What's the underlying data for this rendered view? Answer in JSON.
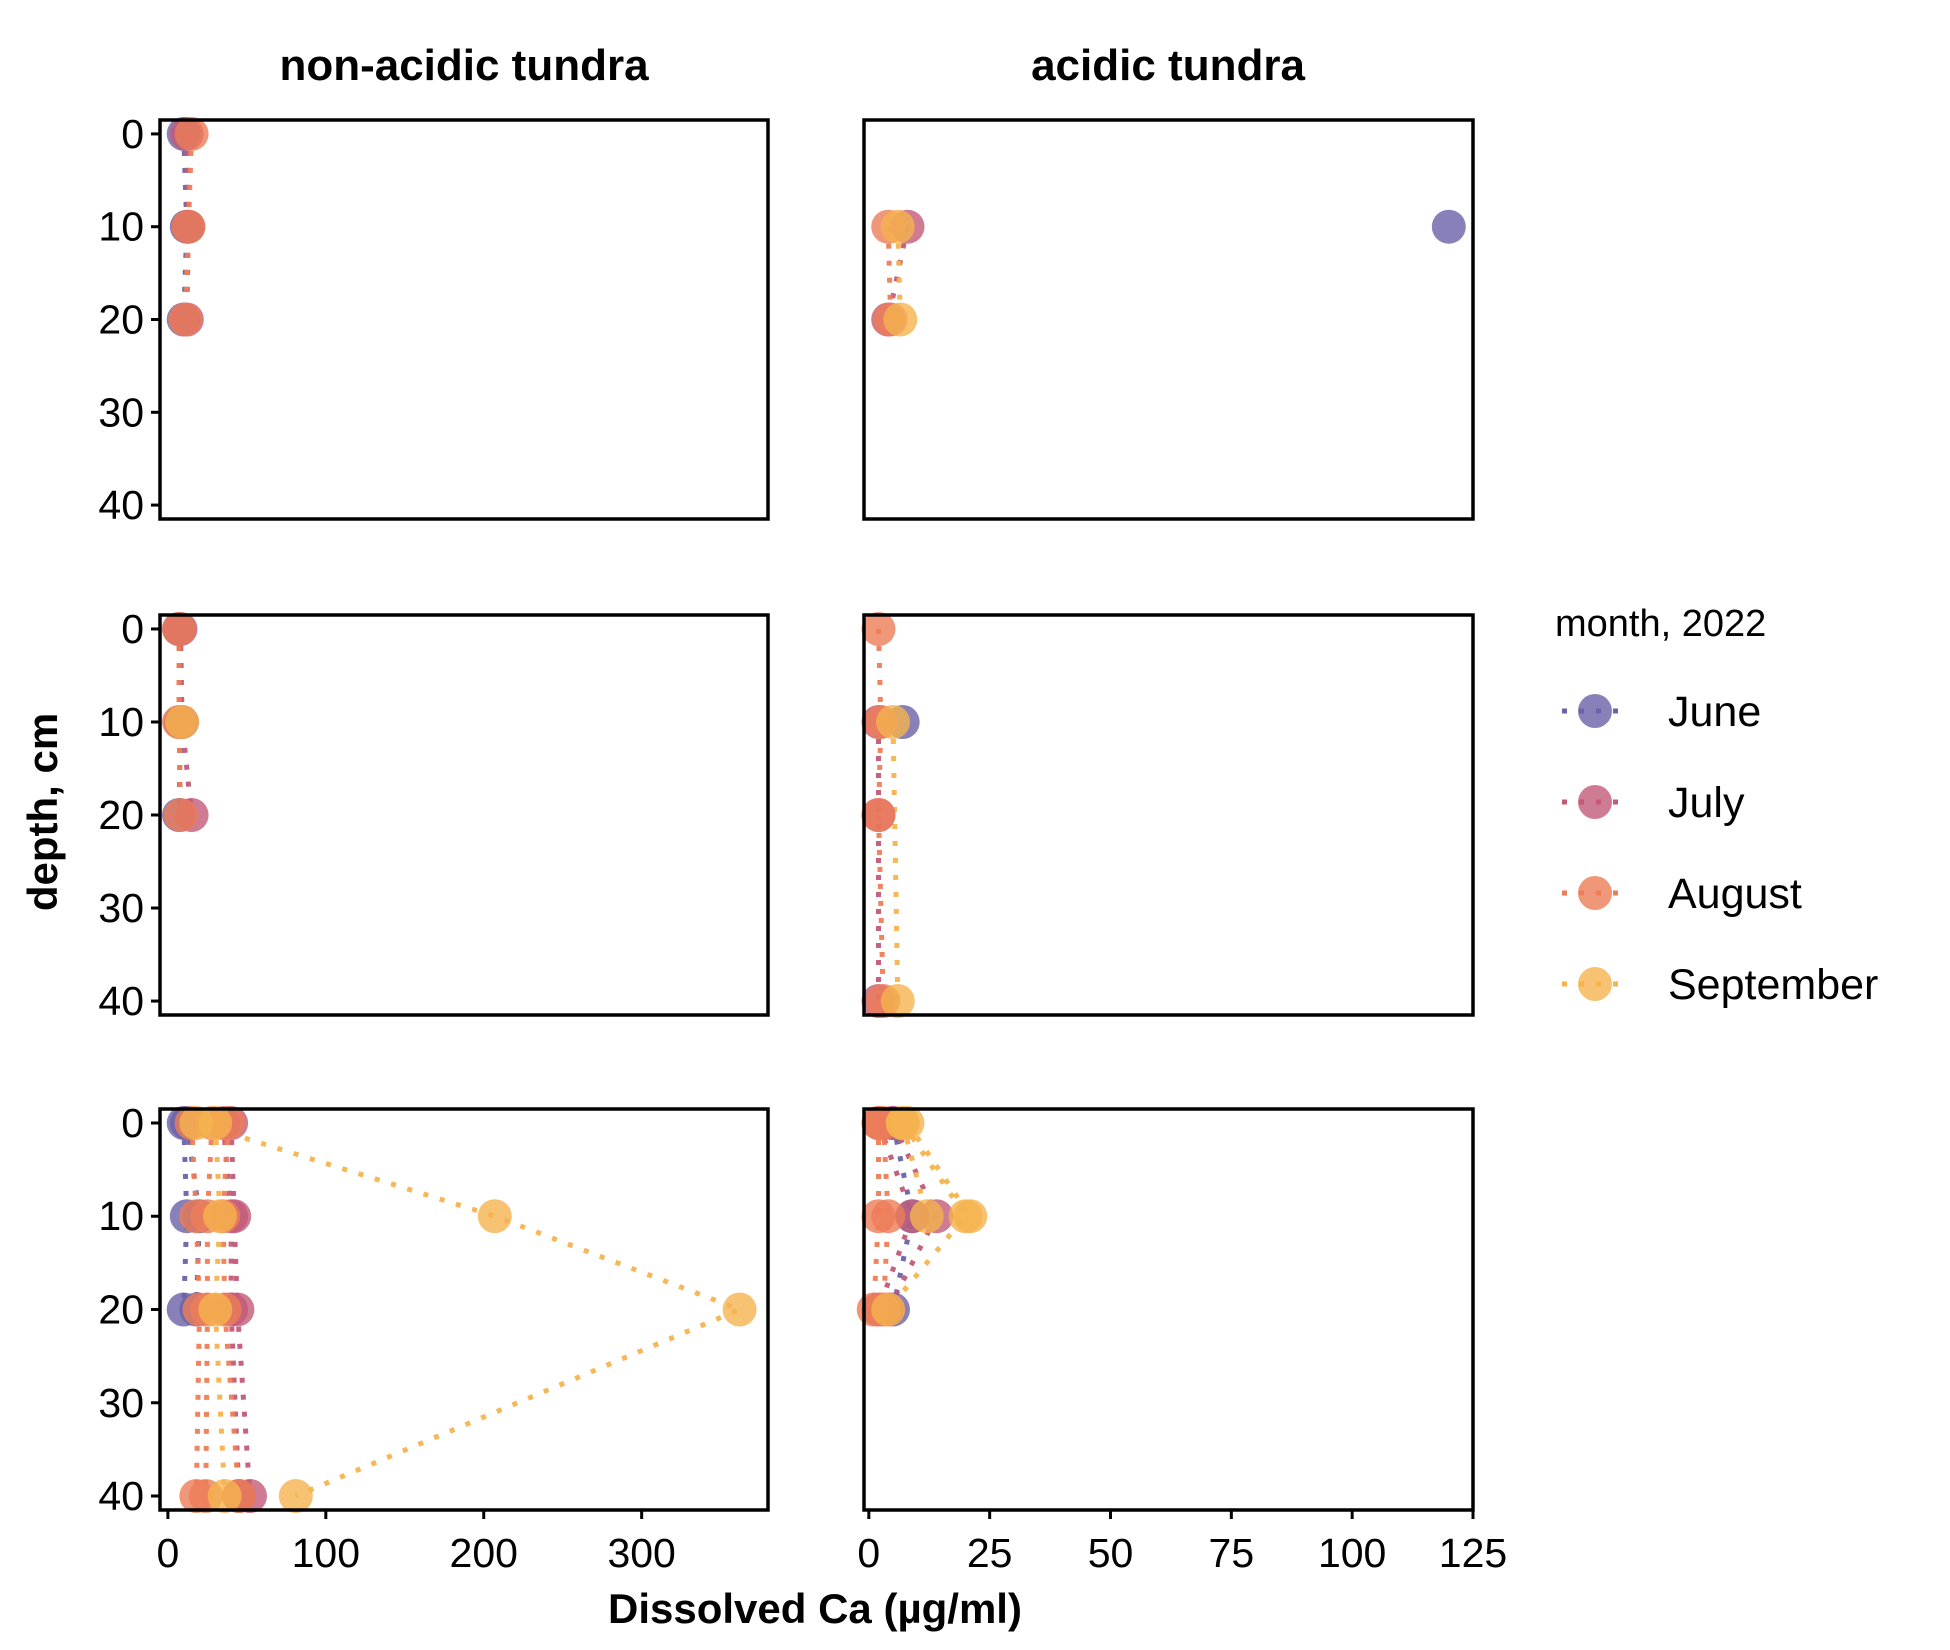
{
  "chart_data": {
    "type": "scatter",
    "xlabel": "Dissolved Ca (µg/ml)",
    "ylabel": "depth, cm",
    "legend": {
      "title": "month, 2022",
      "placement": "right",
      "entries": [
        "June",
        "July",
        "August",
        "September"
      ]
    },
    "colors": {
      "June": "#6a62a8",
      "July": "#c25a78",
      "August": "#ee7d57",
      "September": "#f5b34e"
    },
    "columns": [
      "non-acidic tundra",
      "acidic tundra"
    ],
    "y_axis": {
      "range": [
        41.5,
        -1.5
      ],
      "reversed": true,
      "ticks": [
        0,
        10,
        20,
        30,
        40
      ]
    },
    "x_axes": [
      {
        "column": "non-acidic tundra",
        "range": [
          -5,
          380
        ],
        "ticks": [
          0,
          100,
          200,
          300
        ]
      },
      {
        "column": "acidic tundra",
        "range": [
          -1,
          125
        ],
        "ticks": [
          0,
          25,
          50,
          75,
          100,
          125
        ]
      }
    ],
    "grid": false,
    "panels": [
      {
        "row": 1,
        "column": "non-acidic tundra",
        "profiles": [
          {
            "month": "June",
            "points": [
              [
                10,
                0
              ],
              [
                12,
                10
              ],
              [
                10,
                20
              ]
            ]
          },
          {
            "month": "July",
            "points": [
              [
                12,
                0
              ],
              [
                13,
                10
              ],
              [
                12,
                20
              ]
            ]
          },
          {
            "month": "August",
            "points": [
              [
                15,
                0
              ],
              [
                13,
                10
              ],
              [
                11,
                20
              ]
            ]
          }
        ]
      },
      {
        "row": 1,
        "column": "acidic tundra",
        "profiles": [
          {
            "month": "June",
            "points": [
              [
                120,
                10
              ]
            ]
          },
          {
            "month": "July",
            "points": [
              [
                8,
                10
              ],
              [
                4,
                20
              ]
            ]
          },
          {
            "month": "August",
            "points": [
              [
                4,
                10
              ],
              [
                4.5,
                20
              ]
            ]
          },
          {
            "month": "September",
            "points": [
              [
                6,
                10
              ],
              [
                6.5,
                20
              ]
            ]
          }
        ]
      },
      {
        "row": 2,
        "column": "non-acidic tundra",
        "profiles": [
          {
            "month": "June",
            "points": [
              [
                7,
                0
              ],
              [
                8,
                10
              ],
              [
                7,
                20
              ]
            ]
          },
          {
            "month": "July",
            "points": [
              [
                8,
                0
              ],
              [
                9,
                10
              ],
              [
                15,
                20
              ]
            ]
          },
          {
            "month": "August",
            "points": [
              [
                7,
                0
              ],
              [
                7,
                10
              ],
              [
                8,
                20
              ]
            ]
          },
          {
            "month": "September",
            "points": [
              [
                9,
                10
              ]
            ]
          }
        ]
      },
      {
        "row": 2,
        "column": "acidic tundra",
        "profiles": [
          {
            "month": "June",
            "points": [
              [
                7,
                10
              ]
            ]
          },
          {
            "month": "July",
            "points": [
              [
                2,
                10
              ],
              [
                2,
                20
              ],
              [
                2,
                40
              ]
            ]
          },
          {
            "month": "August",
            "points": [
              [
                2,
                0
              ],
              [
                2.5,
                10
              ],
              [
                2,
                20
              ],
              [
                3,
                40
              ]
            ]
          },
          {
            "month": "September",
            "points": [
              [
                5,
                10
              ],
              [
                6,
                40
              ]
            ]
          }
        ]
      },
      {
        "row": 3,
        "column": "non-acidic tundra",
        "profiles": [
          {
            "month": "June",
            "points": [
              [
                10,
                0
              ],
              [
                12,
                10
              ],
              [
                10,
                20
              ]
            ]
          },
          {
            "month": "July",
            "points": [
              [
                35,
                0
              ],
              [
                40,
                10
              ],
              [
                40,
                20
              ],
              [
                45,
                40
              ]
            ]
          },
          {
            "month": "June",
            "points": [
              [
                12,
                0
              ],
              [
                20,
                10
              ],
              [
                18,
                20
              ]
            ]
          },
          {
            "month": "July",
            "points": [
              [
                40,
                0
              ],
              [
                42,
                10
              ],
              [
                44,
                20
              ],
              [
                52,
                40
              ]
            ]
          },
          {
            "month": "August",
            "points": [
              [
                15,
                0
              ],
              [
                18,
                10
              ],
              [
                20,
                20
              ],
              [
                18,
                40
              ]
            ]
          },
          {
            "month": "August",
            "points": [
              [
                38,
                0
              ],
              [
                35,
                10
              ],
              [
                36,
                20
              ],
              [
                45,
                40
              ]
            ]
          },
          {
            "month": "August",
            "points": [
              [
                28,
                0
              ],
              [
                25,
                10
              ],
              [
                25,
                20
              ],
              [
                24,
                40
              ]
            ]
          },
          {
            "month": "September",
            "points": [
              [
                18,
                0
              ],
              [
                207,
                10
              ],
              [
                362,
                20
              ],
              [
                81,
                40
              ]
            ]
          },
          {
            "month": "September",
            "points": [
              [
                30,
                0
              ],
              [
                33,
                10
              ],
              [
                30,
                20
              ],
              [
                36,
                40
              ]
            ]
          }
        ]
      },
      {
        "row": 3,
        "column": "acidic tundra",
        "profiles": [
          {
            "month": "June",
            "points": [
              [
                5,
                0
              ],
              [
                9,
                10
              ],
              [
                5,
                20
              ]
            ]
          },
          {
            "month": "July",
            "points": [
              [
                2,
                0
              ],
              [
                9,
                10
              ],
              [
                2,
                20
              ]
            ]
          },
          {
            "month": "July",
            "points": [
              [
                5,
                0
              ],
              [
                14,
                10
              ],
              [
                4,
                20
              ]
            ]
          },
          {
            "month": "August",
            "points": [
              [
                2,
                0
              ],
              [
                2,
                10
              ],
              [
                1,
                20
              ]
            ]
          },
          {
            "month": "August",
            "points": [
              [
                3,
                0
              ],
              [
                4,
                10
              ],
              [
                3,
                20
              ]
            ]
          },
          {
            "month": "September",
            "points": [
              [
                7,
                0
              ],
              [
                20,
                10
              ],
              [
                4,
                20
              ]
            ]
          },
          {
            "month": "September",
            "points": [
              [
                8,
                0
              ],
              [
                21,
                10
              ]
            ]
          },
          {
            "month": "September",
            "points": [
              [
                7,
                0
              ],
              [
                12,
                10
              ]
            ]
          }
        ]
      }
    ]
  }
}
